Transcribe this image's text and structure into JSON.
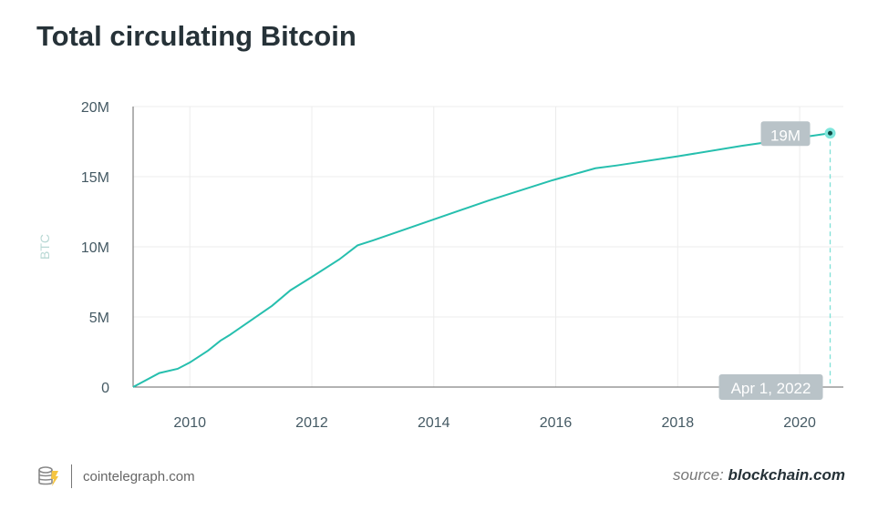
{
  "footer": {
    "site": "cointelegraph.com",
    "source_prefix": "source:",
    "source_name": "blockchain.com"
  },
  "colors": {
    "line": "#26bfae",
    "grid": "#ececec",
    "tooltip": "#b9c3c8"
  },
  "chart_data": {
    "type": "line",
    "title": "Total circulating Bitcoin",
    "xlabel": "",
    "ylabel": "BTC",
    "xlim": [
      2009.07,
      2020.6
    ],
    "ylim": [
      0,
      20
    ],
    "x_ticks": [
      2010,
      2012,
      2014,
      2016,
      2018,
      2020
    ],
    "x_tick_labels": [
      "2010",
      "2012",
      "2014",
      "2016",
      "2018",
      "2020"
    ],
    "y_ticks": [
      0,
      5,
      10,
      15,
      20
    ],
    "y_tick_labels": [
      "0",
      "5M",
      "10M",
      "15M",
      "20M"
    ],
    "grid": true,
    "series": [
      {
        "name": "BTC",
        "x": [
          2009.07,
          2009.5,
          2009.8,
          2010.0,
          2010.3,
          2010.5,
          2010.65,
          2011.05,
          2011.35,
          2011.65,
          2012.0,
          2012.45,
          2012.75,
          2013.0,
          2014.0,
          2014.9,
          2015.95,
          2016.65,
          2017.0,
          2018.0,
          2019.05,
          2020.5
        ],
        "y": [
          0,
          1.0,
          1.3,
          1.75,
          2.6,
          3.3,
          3.7,
          4.9,
          5.8,
          6.9,
          7.85,
          9.1,
          10.1,
          10.45,
          11.95,
          13.3,
          14.75,
          15.6,
          15.8,
          16.45,
          17.2,
          18.1
        ]
      }
    ],
    "annotations": {
      "value_label": "19M",
      "date_label": "Apr 1, 2022"
    }
  }
}
